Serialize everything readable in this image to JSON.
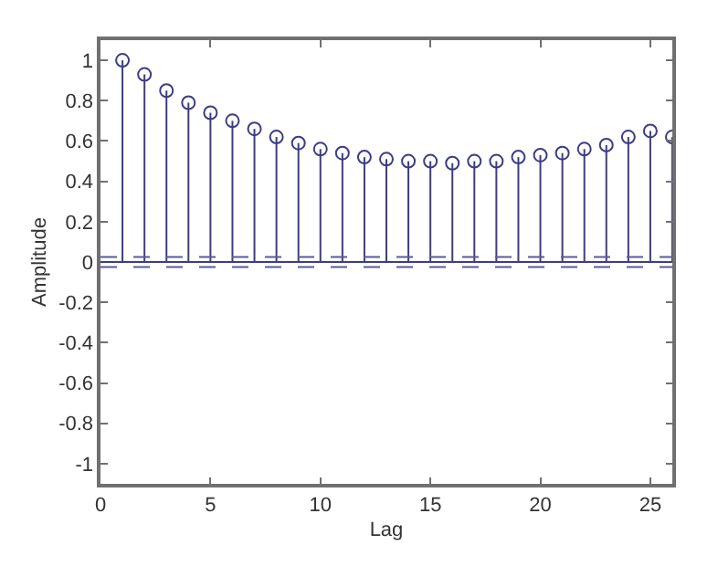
{
  "chart_data": {
    "type": "lollipop",
    "xlabel": "Lag",
    "ylabel": "Amplitude",
    "x": [
      1,
      2,
      3,
      4,
      5,
      6,
      7,
      8,
      9,
      10,
      11,
      12,
      13,
      14,
      15,
      16,
      17,
      18,
      19,
      20,
      21,
      22,
      23,
      24,
      25,
      26
    ],
    "series": [
      {
        "color": "#3c3c8c",
        "values": [
          1.0,
          0.93,
          0.85,
          0.79,
          0.74,
          0.7,
          0.66,
          0.62,
          0.59,
          0.56,
          0.54,
          0.52,
          0.51,
          0.5,
          0.5,
          0.49,
          0.5,
          0.5,
          0.52,
          0.53,
          0.54,
          0.56,
          0.58,
          0.62,
          0.65,
          0.62
        ]
      }
    ],
    "marker": "circle",
    "ref_lines": [
      {
        "axis": "y",
        "value": 0.025,
        "color": "#5a5a9a",
        "line_style": "dashed"
      },
      {
        "axis": "y",
        "value": -0.025,
        "color": "#5a5a9a",
        "line_style": "dashed"
      },
      {
        "axis": "y",
        "value": 0,
        "color": "#3c3c8c",
        "line_style": "solid"
      }
    ],
    "xlim": [
      0,
      26
    ],
    "xticks": [
      0,
      5,
      10,
      15,
      20,
      25
    ],
    "ylim": [
      -1.1,
      1.1
    ],
    "yticks": [
      -1,
      -0.8,
      -0.6,
      -0.4,
      -0.2,
      0,
      0.2,
      0.4,
      0.6,
      0.8,
      1
    ]
  }
}
